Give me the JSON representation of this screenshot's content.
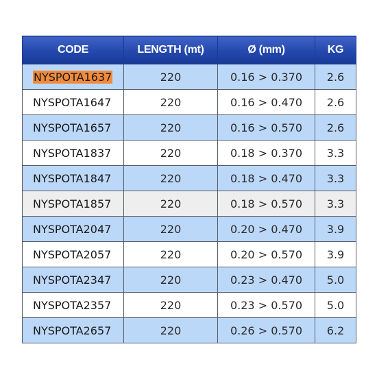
{
  "table": {
    "headers": [
      "CODE",
      "LENGTH (mt)",
      "Ø (mm)",
      "KG"
    ],
    "rows": [
      {
        "code": "NYSPOTA1637",
        "length": "220",
        "diameter": "0.16 > 0.370",
        "kg": "2.6",
        "style": "blue",
        "highlighted": true
      },
      {
        "code": "NYSPOTA1647",
        "length": "220",
        "diameter": "0.16 > 0.470",
        "kg": "2.6",
        "style": "white"
      },
      {
        "code": "NYSPOTA1657",
        "length": "220",
        "diameter": "0.16 > 0.570",
        "kg": "2.6",
        "style": "blue"
      },
      {
        "code": "NYSPOTA1837",
        "length": "220",
        "diameter": "0.18 > 0.370",
        "kg": "3.3",
        "style": "white"
      },
      {
        "code": "NYSPOTA1847",
        "length": "220",
        "diameter": "0.18 > 0.470",
        "kg": "3.3",
        "style": "blue"
      },
      {
        "code": "NYSPOTA1857",
        "length": "220",
        "diameter": "0.18 > 0.570",
        "kg": "3.3",
        "style": "grey"
      },
      {
        "code": "NYSPOTA2047",
        "length": "220",
        "diameter": "0.20 > 0.470",
        "kg": "3.9",
        "style": "blue"
      },
      {
        "code": "NYSPOTA2057",
        "length": "220",
        "diameter": "0.20 > 0.570",
        "kg": "3.9",
        "style": "white"
      },
      {
        "code": "NYSPOTA2347",
        "length": "220",
        "diameter": "0.23 > 0.470",
        "kg": "5.0",
        "style": "blue"
      },
      {
        "code": "NYSPOTA2357",
        "length": "220",
        "diameter": "0.23 > 0.570",
        "kg": "5.0",
        "style": "white"
      },
      {
        "code": "NYSPOTA2657",
        "length": "220",
        "diameter": "0.26 > 0.570",
        "kg": "6.2",
        "style": "blue"
      }
    ]
  },
  "colors": {
    "header": "#2448ad",
    "row_blue": "#bcd8f8",
    "row_white": "#ffffff",
    "row_grey": "#eeeeee",
    "highlight": "#f08a3c"
  }
}
